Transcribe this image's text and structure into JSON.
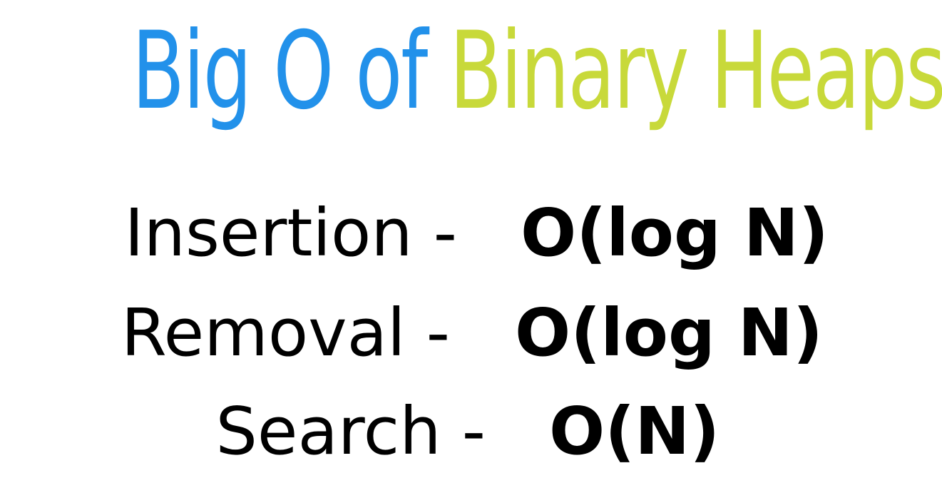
{
  "title": {
    "part1": "Big O of",
    "part2": "Binary Heaps"
  },
  "operations": [
    {
      "label": "Insertion -",
      "complexity": "O(log N)"
    },
    {
      "label": "Removal -",
      "complexity": "O(log N)"
    },
    {
      "label": "Search -",
      "complexity": "O(N)"
    }
  ],
  "colors": {
    "title_part1": "#2291ea",
    "title_part2": "#c8d93a",
    "text": "#000000",
    "background": "#ffffff"
  }
}
